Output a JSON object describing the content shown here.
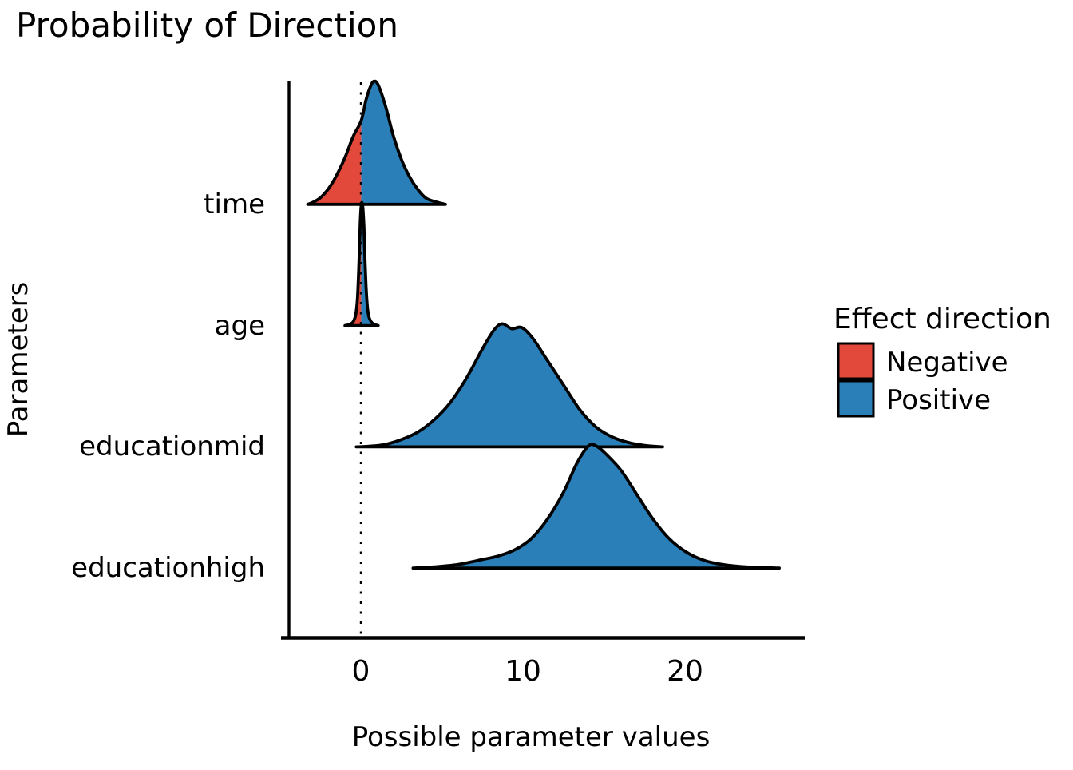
{
  "title": "Probability of Direction",
  "axes": {
    "x": {
      "title": "Possible parameter values",
      "ticks": [
        "0",
        "10",
        "20"
      ]
    },
    "y": {
      "title": "Parameters",
      "categories": [
        "time",
        "age",
        "educationmid",
        "educationhigh"
      ]
    }
  },
  "legend": {
    "title": "Effect direction",
    "items": [
      {
        "label": "Negative",
        "color": "#E3493B"
      },
      {
        "label": "Positive",
        "color": "#2A7FB8"
      }
    ]
  },
  "reference_line": {
    "x": 0,
    "style": "dotted",
    "color": "#000000"
  },
  "colors": {
    "negative": "#E3493B",
    "positive": "#2A7FB8",
    "outline": "#000000",
    "background": "#FFFFFF"
  },
  "chart_data": {
    "type": "area",
    "subtype": "ridgeline-density",
    "title": "Probability of Direction",
    "xlabel": "Possible parameter values",
    "ylabel": "Parameters",
    "xlim": [
      -4.5,
      27.3
    ],
    "x_ticks": [
      0,
      10,
      20
    ],
    "categories_top_to_bottom": [
      "time",
      "age",
      "educationmid",
      "educationhigh"
    ],
    "grid": false,
    "legend_position": "right",
    "fill_rule": "area left of x=0 filled Negative red, area right of x=0 filled Positive blue",
    "series": [
      {
        "name": "time",
        "peak_x": 0.78,
        "range": [
          -3.3,
          5.2
        ],
        "points": [
          [
            -3.3,
            0
          ],
          [
            -3,
            0.015
          ],
          [
            -2.5,
            0.055
          ],
          [
            -2,
            0.13
          ],
          [
            -1.5,
            0.24
          ],
          [
            -1,
            0.38
          ],
          [
            -0.5,
            0.55
          ],
          [
            0,
            0.68
          ],
          [
            0.3,
            0.85
          ],
          [
            0.55,
            0.95
          ],
          [
            0.78,
            1
          ],
          [
            1.05,
            0.97
          ],
          [
            1.5,
            0.8
          ],
          [
            2,
            0.55
          ],
          [
            2.5,
            0.36
          ],
          [
            3,
            0.22
          ],
          [
            3.5,
            0.12
          ],
          [
            4,
            0.05
          ],
          [
            4.6,
            0.02
          ],
          [
            5.2,
            0
          ]
        ]
      },
      {
        "name": "age",
        "peak_x": 0.05,
        "range": [
          -1.0,
          1.05
        ],
        "points": [
          [
            -1,
            0
          ],
          [
            -0.7,
            0.01
          ],
          [
            -0.5,
            0.03
          ],
          [
            -0.35,
            0.08
          ],
          [
            -0.25,
            0.18
          ],
          [
            -0.18,
            0.35
          ],
          [
            -0.12,
            0.58
          ],
          [
            -0.06,
            0.83
          ],
          [
            0,
            0.97
          ],
          [
            0.05,
            1
          ],
          [
            0.11,
            0.95
          ],
          [
            0.17,
            0.8
          ],
          [
            0.23,
            0.55
          ],
          [
            0.3,
            0.32
          ],
          [
            0.38,
            0.16
          ],
          [
            0.48,
            0.07
          ],
          [
            0.62,
            0.03
          ],
          [
            0.8,
            0.01
          ],
          [
            1.05,
            0
          ]
        ]
      },
      {
        "name": "educationmid",
        "peak_x": 8.7,
        "range": [
          -0.3,
          18.6
        ],
        "points": [
          [
            -0.3,
            0
          ],
          [
            0.5,
            0.005
          ],
          [
            1.5,
            0.02
          ],
          [
            2.5,
            0.06
          ],
          [
            3.5,
            0.12
          ],
          [
            4.5,
            0.22
          ],
          [
            5.5,
            0.36
          ],
          [
            6.5,
            0.56
          ],
          [
            7.5,
            0.8
          ],
          [
            8.2,
            0.95
          ],
          [
            8.7,
            1
          ],
          [
            9.3,
            0.96
          ],
          [
            9.9,
            0.97
          ],
          [
            10.6,
            0.88
          ],
          [
            11.5,
            0.7
          ],
          [
            12.5,
            0.5
          ],
          [
            13.5,
            0.3
          ],
          [
            14.5,
            0.16
          ],
          [
            15.5,
            0.08
          ],
          [
            16.5,
            0.035
          ],
          [
            17.5,
            0.012
          ],
          [
            18.6,
            0
          ]
        ]
      },
      {
        "name": "educationhigh",
        "peak_x": 14.4,
        "range": [
          3.2,
          25.8
        ],
        "points": [
          [
            3.2,
            0
          ],
          [
            4.5,
            0.01
          ],
          [
            6,
            0.03
          ],
          [
            7.5,
            0.07
          ],
          [
            8.5,
            0.1
          ],
          [
            9.5,
            0.15
          ],
          [
            10.5,
            0.24
          ],
          [
            11.5,
            0.4
          ],
          [
            12.5,
            0.62
          ],
          [
            13.3,
            0.85
          ],
          [
            14,
            0.99
          ],
          [
            14.4,
            1
          ],
          [
            15,
            0.94
          ],
          [
            16,
            0.8
          ],
          [
            17,
            0.6
          ],
          [
            18,
            0.4
          ],
          [
            19,
            0.24
          ],
          [
            20,
            0.135
          ],
          [
            21,
            0.07
          ],
          [
            22,
            0.035
          ],
          [
            23.5,
            0.012
          ],
          [
            25.8,
            0
          ]
        ]
      }
    ]
  }
}
